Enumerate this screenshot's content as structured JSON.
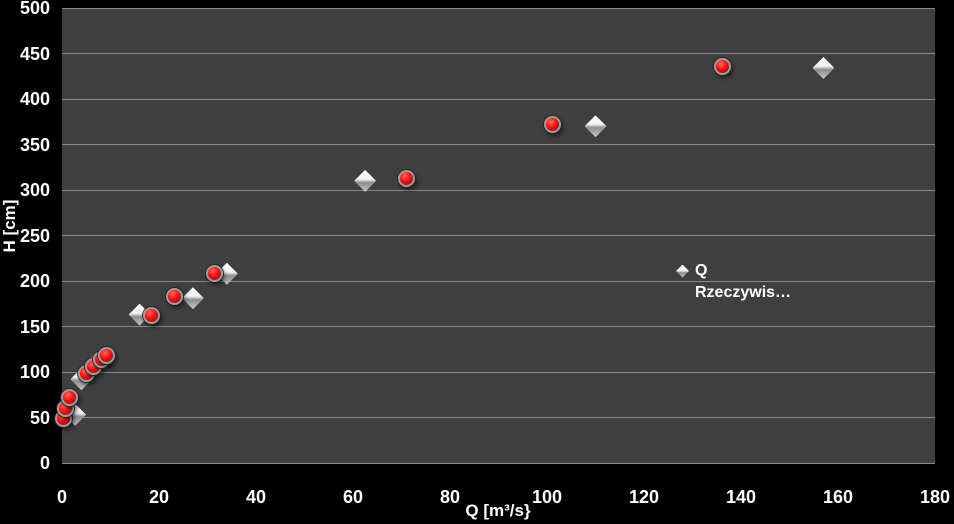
{
  "colors": {
    "background": "#000000",
    "plot_background": "#3f3f3f",
    "gridline": "#8a8a8a",
    "text": "#ffffff",
    "series_circle": "#ef1212",
    "series_diamond": "#e8e8e8"
  },
  "chart_data": {
    "type": "scatter",
    "title": "",
    "xlabel": "Q [m³/s}",
    "ylabel": "H [cm]",
    "xlim": [
      0,
      180
    ],
    "ylim": [
      0,
      500
    ],
    "x_ticks": [
      0,
      20,
      40,
      60,
      80,
      100,
      120,
      140,
      160,
      180
    ],
    "y_ticks": [
      0,
      50,
      100,
      150,
      200,
      250,
      300,
      350,
      400,
      450,
      500
    ],
    "grid": "horizontal-only",
    "legend": {
      "position": "inside-right",
      "entries": [
        {
          "marker": "diamond",
          "label_line1": "Q",
          "label_line2": "Rzeczywis…"
        }
      ]
    },
    "series": [
      {
        "marker": "diamond",
        "legend_label": "Q Rzeczywis…",
        "points": [
          [
            2.7,
            53
          ],
          [
            4,
            92
          ],
          [
            5.5,
            101
          ],
          [
            7,
            109
          ],
          [
            16,
            163
          ],
          [
            27,
            181
          ],
          [
            34,
            208
          ],
          [
            62.5,
            310
          ],
          [
            110,
            370
          ],
          [
            157,
            434
          ]
        ]
      },
      {
        "marker": "circle",
        "legend_label": "",
        "points": [
          [
            0.8,
            47
          ],
          [
            1.2,
            58
          ],
          [
            2,
            70
          ],
          [
            5.5,
            96
          ],
          [
            7,
            104
          ],
          [
            8.5,
            111
          ],
          [
            9.5,
            116
          ],
          [
            18.8,
            160
          ],
          [
            23.7,
            181
          ],
          [
            31.8,
            206
          ],
          [
            71.5,
            310
          ],
          [
            101.5,
            370
          ],
          [
            136.5,
            434
          ]
        ]
      }
    ]
  }
}
